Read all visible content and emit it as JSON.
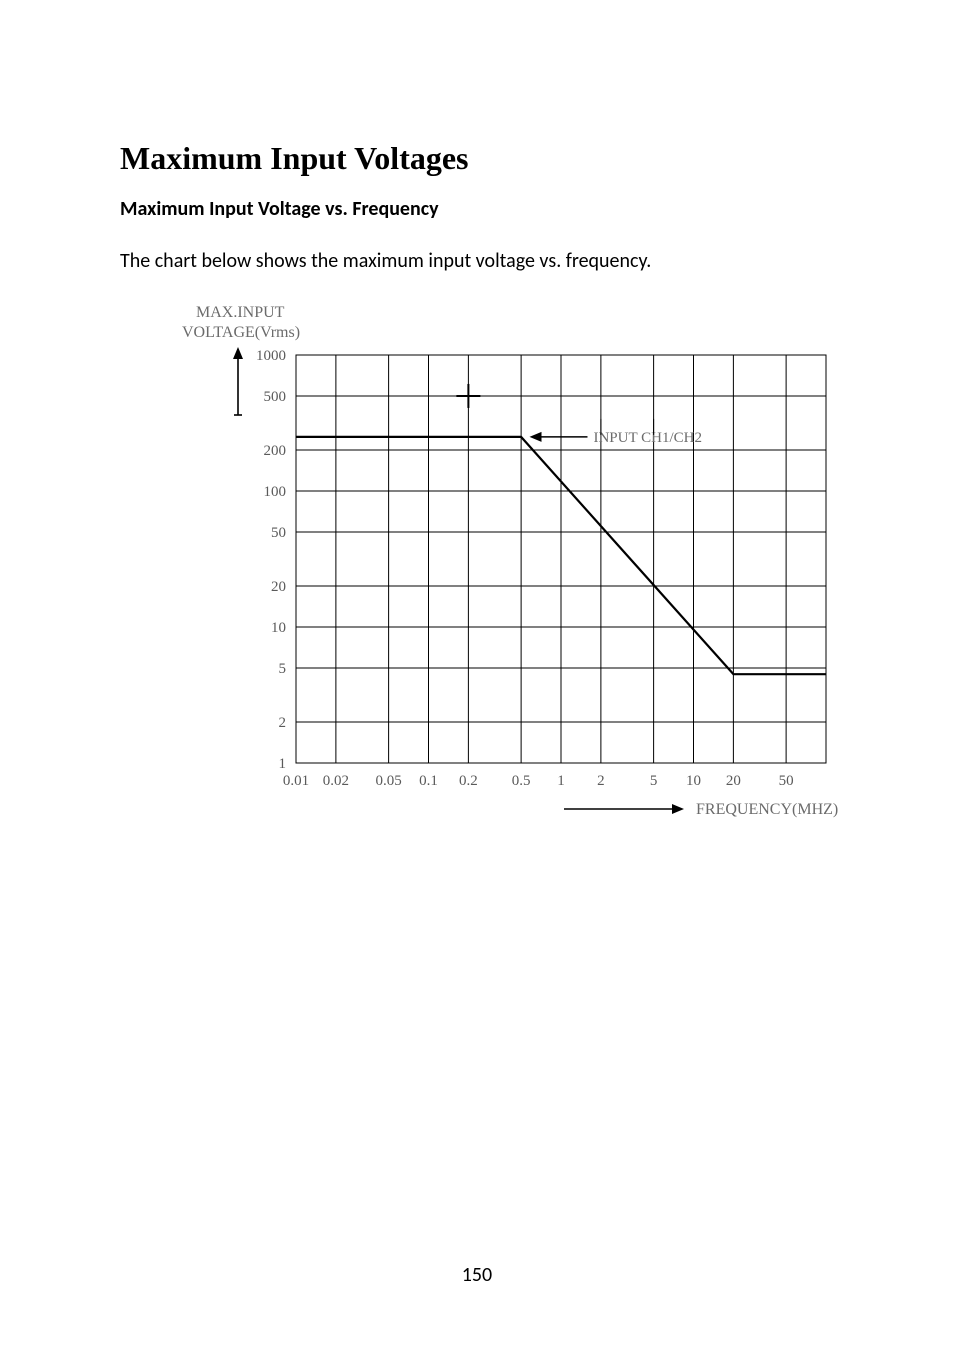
{
  "page": {
    "title": "Maximum Input Voltages",
    "subtitle": "Maximum Input Voltage vs. Frequency",
    "body": "The chart below shows the maximum input voltage vs. frequency.",
    "page_number": "150"
  },
  "chart": {
    "type": "line",
    "y_axis_title_line1": "MAX.INPUT",
    "y_axis_title_line2": "VOLTAGE(Vrms)",
    "x_axis_title": "FREQUENCY(MHZ)",
    "series_label": "INPUT CH1/CH2",
    "y_ticks": [
      "1000",
      "500",
      "200",
      "100",
      "50",
      "20",
      "10",
      "5",
      "2",
      "1"
    ],
    "x_ticks": [
      "0.01",
      "0.02",
      "0.05",
      "0.1",
      "0.2",
      "0.5",
      "1",
      "2",
      "5",
      "10",
      "20",
      "50"
    ],
    "y_scale": "log",
    "x_scale": "log",
    "data_points_freq_mhz": [
      0.01,
      0.5,
      20,
      100
    ],
    "data_points_vrms": [
      250,
      250,
      4.5,
      4.5
    ],
    "background_color": "#ffffff",
    "grid_color": "#000000",
    "line_color": "#000000",
    "line_width": 2.2,
    "axis_label_color": "#6b6b6b",
    "tick_label_color": "#5a5a5a",
    "tick_fontsize": 15,
    "axis_title_fontsize": 16,
    "font_family": "Times New Roman, serif"
  }
}
